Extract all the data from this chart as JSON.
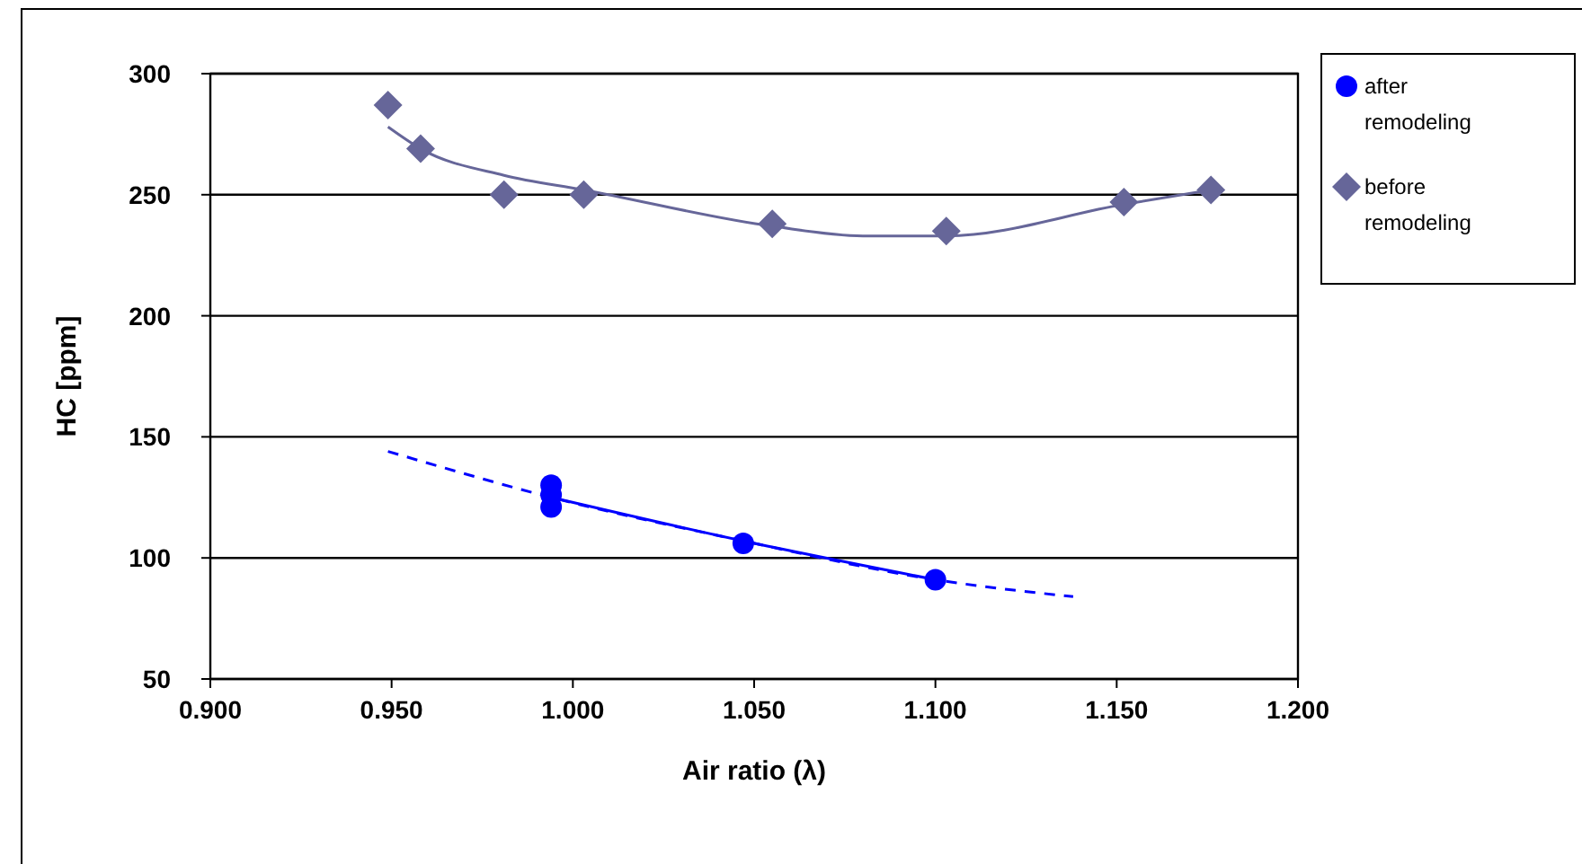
{
  "chart_data": {
    "type": "scatter",
    "xlabel": "Air ratio (λ)",
    "ylabel": "HC [ppm]",
    "xlim": [
      0.9,
      1.2
    ],
    "xticks": [
      {
        "value": 0.9,
        "label": "0.900"
      },
      {
        "value": 0.95,
        "label": "0.950"
      },
      {
        "value": 1.0,
        "label": "1.000"
      },
      {
        "value": 1.05,
        "label": "1.050"
      },
      {
        "value": 1.1,
        "label": "1.100"
      },
      {
        "value": 1.15,
        "label": "1.150"
      },
      {
        "value": 1.2,
        "label": "1.200"
      }
    ],
    "ylim": [
      50,
      300
    ],
    "yticks": [
      50,
      100,
      150,
      200,
      250,
      300
    ],
    "grid": "y",
    "legend": "right",
    "series": [
      {
        "type": "line",
        "color": "#0000ff",
        "line_style": "dashed",
        "marker": "none",
        "x": [
          0.949,
          0.994,
          1.047,
          1.1,
          1.138
        ],
        "values": [
          144,
          125,
          107,
          91,
          84
        ]
      },
      {
        "type": "line",
        "color": "#0000ff",
        "line_style": "solid",
        "marker": "none",
        "x": [
          0.994,
          1.047,
          1.1
        ],
        "values": [
          125,
          107,
          91
        ]
      },
      {
        "type": "line",
        "color": "#666699",
        "line_style": "solid",
        "marker": "none",
        "x": [
          0.949,
          0.958,
          0.981,
          1.003,
          1.055,
          1.08,
          1.103,
          1.152,
          1.176
        ],
        "values": [
          278,
          269,
          258,
          252,
          237,
          233,
          233,
          246,
          252
        ]
      },
      {
        "name": "after remodeling",
        "color": "#0000ff",
        "marker": "circle",
        "x": [
          0.994,
          0.994,
          0.994,
          1.047,
          1.1
        ],
        "values": [
          130,
          126,
          121,
          106,
          91
        ]
      },
      {
        "name": "before remodeling",
        "color": "#666699",
        "marker": "diamond",
        "x": [
          0.949,
          0.958,
          0.981,
          1.003,
          1.055,
          1.103,
          1.152,
          1.176
        ],
        "values": [
          287,
          269,
          250,
          250,
          238,
          235,
          247,
          252
        ]
      }
    ]
  }
}
